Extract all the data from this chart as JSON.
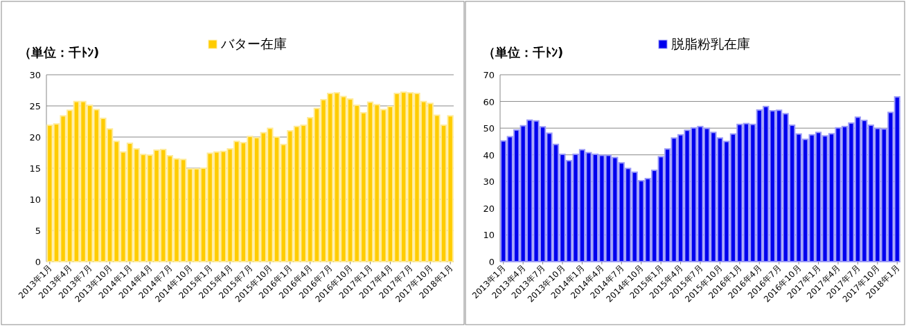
{
  "chart_data": [
    {
      "type": "bar",
      "ylabel": "（単位：千ﾄﾝ)",
      "legend": "top",
      "grid": "y",
      "ylim": [
        0,
        30
      ],
      "yticks": [
        0,
        5,
        10,
        15,
        20,
        25,
        30
      ],
      "categories": [
        "2013年1月",
        null,
        null,
        "2013年4月",
        null,
        null,
        "2013年7月",
        null,
        null,
        "2013年10月",
        null,
        null,
        "2014年1月",
        null,
        null,
        "2014年4月",
        null,
        null,
        "2014年7月",
        null,
        null,
        "2014年10月",
        null,
        null,
        "2015年1月",
        null,
        null,
        "2015年4月",
        null,
        null,
        "2015年7月",
        null,
        null,
        "2015年10月",
        null,
        null,
        "2016年1月",
        null,
        null,
        "2016年4月",
        null,
        null,
        "2016年7月",
        null,
        null,
        "2016年10月",
        null,
        null,
        "2017年1月",
        null,
        null,
        "2017年4月",
        null,
        null,
        "2017年7月",
        null,
        null,
        "2017年10月",
        null,
        null,
        "2018年1月"
      ],
      "series": [
        {
          "name": "バター在庫",
          "color": "#ffcc00",
          "values": [
            21.9,
            22.1,
            23.4,
            24.3,
            25.7,
            25.7,
            25.1,
            24.4,
            23.0,
            21.3,
            19.3,
            17.6,
            19.0,
            18.1,
            17.2,
            17.1,
            17.9,
            18.0,
            17.0,
            16.5,
            16.4,
            14.9,
            14.9,
            15.0,
            17.4,
            17.6,
            17.7,
            18.1,
            19.3,
            19.1,
            20.1,
            19.9,
            20.7,
            21.4,
            20.0,
            18.8,
            21.0,
            21.7,
            21.9,
            23.1,
            24.6,
            26.0,
            27.0,
            27.1,
            26.5,
            26.1,
            25.1,
            23.9,
            25.6,
            25.2,
            24.4,
            24.9,
            27.0,
            27.2,
            27.1,
            27.0,
            25.7,
            25.4,
            23.5,
            21.9,
            23.4
          ]
        }
      ]
    },
    {
      "type": "bar",
      "ylabel": "（単位：千ﾄﾝ)",
      "legend": "top",
      "grid": "y",
      "ylim": [
        0,
        70
      ],
      "yticks": [
        0,
        10,
        20,
        30,
        40,
        50,
        60,
        70
      ],
      "categories": [
        "2013年1月",
        null,
        null,
        "2013年4月",
        null,
        null,
        "2013年7月",
        null,
        null,
        "2013年10月",
        null,
        null,
        "2014年1月",
        null,
        null,
        "2014年4月",
        null,
        null,
        "2014年7月",
        null,
        null,
        "2014年10月",
        null,
        null,
        "2015年1月",
        null,
        null,
        "2015年4月",
        null,
        null,
        "2015年7月",
        null,
        null,
        "2015年10月",
        null,
        null,
        "2016年1月",
        null,
        null,
        "2016年4月",
        null,
        null,
        "2016年7月",
        null,
        null,
        "2016年10月",
        null,
        null,
        "2017年1月",
        null,
        null,
        "2017年4月",
        null,
        null,
        "2017年7月",
        null,
        null,
        "2017年10月",
        null,
        null,
        "2018年1月"
      ],
      "series": [
        {
          "name": "脱脂粉乳在庫",
          "color": "#0000ee",
          "values": [
            45.2,
            46.8,
            49.3,
            50.9,
            53.0,
            52.7,
            50.5,
            48.1,
            43.9,
            40.2,
            37.8,
            40.2,
            41.9,
            40.8,
            40.2,
            39.8,
            39.8,
            39.0,
            37.0,
            34.9,
            33.5,
            30.3,
            31.1,
            34.2,
            39.3,
            42.2,
            46.3,
            47.5,
            49.2,
            50.1,
            50.6,
            49.9,
            48.4,
            46.3,
            45.0,
            47.8,
            51.4,
            51.7,
            51.4,
            56.8,
            58.1,
            56.5,
            56.7,
            55.4,
            51.1,
            47.8,
            45.8,
            47.5,
            48.4,
            47.1,
            47.9,
            50.1,
            50.6,
            51.9,
            54.1,
            52.9,
            51.1,
            49.9,
            49.7,
            55.9,
            61.7
          ]
        }
      ]
    }
  ]
}
